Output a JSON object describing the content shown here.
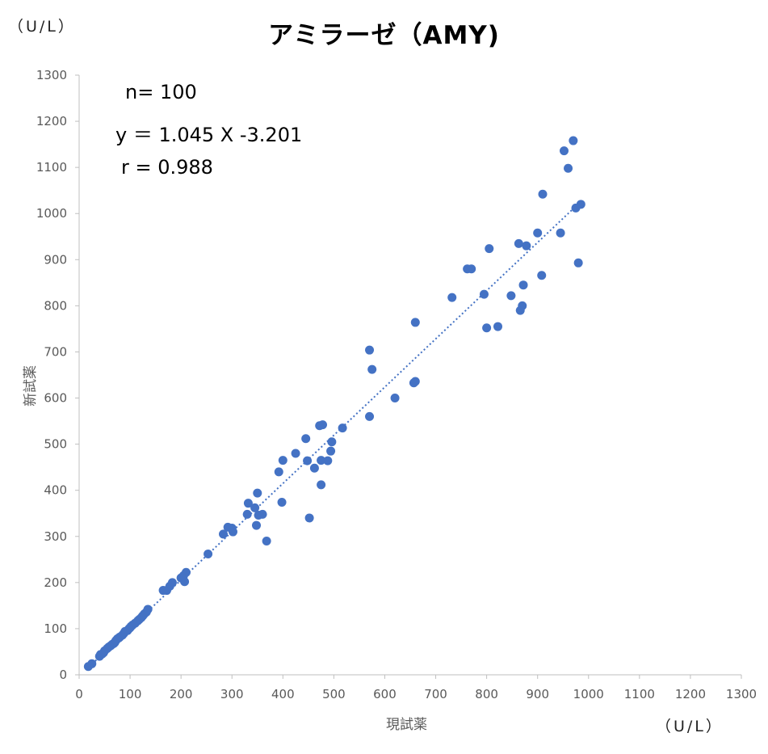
{
  "chart_data": {
    "type": "scatter",
    "title": "アミラーゼ（AMY)",
    "xlabel": "現試薬",
    "ylabel": "新試薬",
    "x_unit": "（U/L）",
    "y_unit": "（U/L）",
    "xlim": [
      0,
      1300
    ],
    "ylim": [
      0,
      1300
    ],
    "x_ticks": [
      "0",
      "100",
      "200",
      "300",
      "400",
      "500",
      "600",
      "700",
      "800",
      "900",
      "1000",
      "1100",
      "1200",
      "1300"
    ],
    "y_ticks": [
      "0",
      "100",
      "200",
      "300",
      "400",
      "500",
      "600",
      "700",
      "800",
      "900",
      "1000",
      "1100",
      "1200",
      "1300"
    ],
    "grid": false,
    "stats": {
      "n": "n= 100",
      "equation": "y ＝ 1.045 X -3.201",
      "r": "r = 0.988"
    },
    "trendline": {
      "slope": 1.045,
      "intercept": -3.201,
      "x_range": [
        20,
        980
      ],
      "style": "dotted"
    },
    "marker_color": "#4472C4",
    "series": [
      {
        "points": [
          [
            18,
            18
          ],
          [
            25,
            24
          ],
          [
            40,
            40
          ],
          [
            42,
            44
          ],
          [
            45,
            45
          ],
          [
            48,
            48
          ],
          [
            50,
            52
          ],
          [
            55,
            57
          ],
          [
            58,
            60
          ],
          [
            62,
            63
          ],
          [
            65,
            66
          ],
          [
            68,
            68
          ],
          [
            70,
            70
          ],
          [
            72,
            74
          ],
          [
            75,
            78
          ],
          [
            78,
            80
          ],
          [
            80,
            82
          ],
          [
            85,
            86
          ],
          [
            88,
            90
          ],
          [
            90,
            94
          ],
          [
            95,
            96
          ],
          [
            98,
            100
          ],
          [
            100,
            102
          ],
          [
            102,
            105
          ],
          [
            105,
            108
          ],
          [
            110,
            112
          ],
          [
            115,
            117
          ],
          [
            118,
            120
          ],
          [
            122,
            124
          ],
          [
            125,
            128
          ],
          [
            128,
            132
          ],
          [
            132,
            136
          ],
          [
            135,
            142
          ],
          [
            165,
            183
          ],
          [
            172,
            183
          ],
          [
            178,
            192
          ],
          [
            183,
            200
          ],
          [
            200,
            210
          ],
          [
            205,
            215
          ],
          [
            207,
            202
          ],
          [
            210,
            222
          ],
          [
            253,
            262
          ],
          [
            283,
            305
          ],
          [
            292,
            320
          ],
          [
            300,
            318
          ],
          [
            302,
            310
          ],
          [
            330,
            348
          ],
          [
            332,
            372
          ],
          [
            345,
            362
          ],
          [
            348,
            324
          ],
          [
            350,
            394
          ],
          [
            352,
            346
          ],
          [
            360,
            348
          ],
          [
            368,
            290
          ],
          [
            392,
            440
          ],
          [
            398,
            374
          ],
          [
            400,
            465
          ],
          [
            425,
            480
          ],
          [
            445,
            512
          ],
          [
            448,
            464
          ],
          [
            452,
            340
          ],
          [
            462,
            448
          ],
          [
            472,
            540
          ],
          [
            475,
            412
          ],
          [
            475,
            465
          ],
          [
            478,
            542
          ],
          [
            488,
            464
          ],
          [
            494,
            485
          ],
          [
            496,
            505
          ],
          [
            517,
            535
          ],
          [
            570,
            704
          ],
          [
            570,
            560
          ],
          [
            575,
            662
          ],
          [
            620,
            600
          ],
          [
            657,
            633
          ],
          [
            660,
            636
          ],
          [
            660,
            764
          ],
          [
            732,
            818
          ],
          [
            762,
            880
          ],
          [
            770,
            880
          ],
          [
            795,
            825
          ],
          [
            800,
            752
          ],
          [
            805,
            924
          ],
          [
            822,
            755
          ],
          [
            848,
            822
          ],
          [
            863,
            935
          ],
          [
            866,
            790
          ],
          [
            870,
            800
          ],
          [
            872,
            845
          ],
          [
            878,
            930
          ],
          [
            900,
            958
          ],
          [
            908,
            866
          ],
          [
            910,
            1042
          ],
          [
            945,
            958
          ],
          [
            952,
            1136
          ],
          [
            960,
            1098
          ],
          [
            970,
            1158
          ],
          [
            980,
            893
          ],
          [
            985,
            1020
          ],
          [
            975,
            1012
          ]
        ]
      }
    ]
  }
}
